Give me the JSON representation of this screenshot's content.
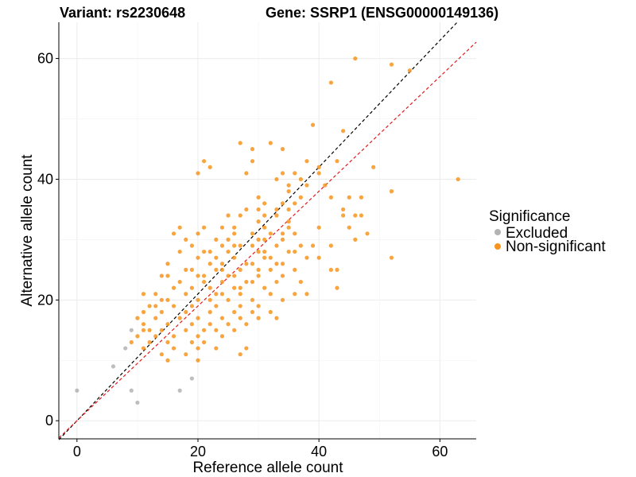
{
  "chart_data": {
    "type": "scatter",
    "title_left": "Variant: rs2230648",
    "title_right": "Gene: SSRP1 (ENSG00000149136)",
    "xlabel": "Reference allele count",
    "ylabel": "Alternative allele count",
    "xlim": [
      -3,
      66
    ],
    "ylim": [
      -3,
      66
    ],
    "x_ticks": [
      0,
      20,
      40,
      60
    ],
    "y_ticks": [
      0,
      20,
      40,
      60
    ],
    "grid": true,
    "legend": {
      "title": "Significance",
      "position": "right",
      "entries": [
        {
          "label": "Excluded",
          "color": "#b3b3b3"
        },
        {
          "label": "Non-significant",
          "color": "#f7941d"
        }
      ]
    },
    "reference_lines": [
      {
        "style": "dashed",
        "color": "#000000",
        "slope": 1.05,
        "intercept": 0
      },
      {
        "style": "dashed",
        "color": "#e41a1c",
        "slope": 0.95,
        "intercept": 0
      }
    ],
    "series": [
      {
        "name": "Excluded",
        "color": "#b3b3b3",
        "points": [
          [
            0,
            5
          ],
          [
            6,
            9
          ],
          [
            8,
            12
          ],
          [
            9,
            15
          ],
          [
            9,
            5
          ],
          [
            10,
            3
          ],
          [
            17,
            5
          ],
          [
            19,
            7
          ]
        ]
      },
      {
        "name": "Non-significant",
        "color": "#f7941d",
        "points": [
          [
            46,
            60
          ],
          [
            52,
            59
          ],
          [
            55,
            58
          ],
          [
            42,
            56
          ],
          [
            39,
            49
          ],
          [
            44,
            48
          ],
          [
            27,
            46
          ],
          [
            29,
            45
          ],
          [
            32,
            46
          ],
          [
            34,
            45
          ],
          [
            21,
            43
          ],
          [
            22,
            42
          ],
          [
            29,
            43
          ],
          [
            38,
            43
          ],
          [
            40,
            42
          ],
          [
            43,
            43
          ],
          [
            49,
            42
          ],
          [
            20,
            41
          ],
          [
            28,
            41
          ],
          [
            34,
            41
          ],
          [
            36,
            41
          ],
          [
            40,
            41
          ],
          [
            63,
            40
          ],
          [
            33,
            40
          ],
          [
            37,
            40
          ],
          [
            35,
            39
          ],
          [
            38,
            39
          ],
          [
            41,
            39
          ],
          [
            35,
            38
          ],
          [
            52,
            38
          ],
          [
            30,
            37
          ],
          [
            37,
            37
          ],
          [
            42,
            37
          ],
          [
            45,
            37
          ],
          [
            47,
            37
          ],
          [
            31,
            36
          ],
          [
            34,
            36
          ],
          [
            36,
            36
          ],
          [
            44,
            35
          ],
          [
            28,
            35
          ],
          [
            30,
            35
          ],
          [
            33,
            35
          ],
          [
            35,
            35
          ],
          [
            44,
            34
          ],
          [
            46,
            34
          ],
          [
            47,
            34
          ],
          [
            25,
            34
          ],
          [
            27,
            34
          ],
          [
            31,
            34
          ],
          [
            33,
            34
          ],
          [
            17,
            32
          ],
          [
            21,
            32
          ],
          [
            24,
            32
          ],
          [
            26,
            32
          ],
          [
            31,
            32
          ],
          [
            35,
            32
          ],
          [
            40,
            32
          ],
          [
            45,
            32
          ],
          [
            16,
            31
          ],
          [
            20,
            31
          ],
          [
            26,
            31
          ],
          [
            29,
            31
          ],
          [
            32,
            31
          ],
          [
            36,
            31
          ],
          [
            48,
            31
          ],
          [
            18,
            30
          ],
          [
            23,
            30
          ],
          [
            30,
            30
          ],
          [
            34,
            30
          ],
          [
            39,
            29
          ],
          [
            42,
            29
          ],
          [
            46,
            30
          ],
          [
            19,
            29
          ],
          [
            24,
            29
          ],
          [
            27,
            29
          ],
          [
            33,
            29
          ],
          [
            37,
            29
          ],
          [
            17,
            28
          ],
          [
            21,
            28
          ],
          [
            25,
            28
          ],
          [
            30,
            28
          ],
          [
            35,
            28
          ],
          [
            20,
            27
          ],
          [
            26,
            27
          ],
          [
            31,
            27
          ],
          [
            38,
            27
          ],
          [
            40,
            27
          ],
          [
            52,
            27
          ],
          [
            15,
            26
          ],
          [
            22,
            26
          ],
          [
            24,
            26
          ],
          [
            29,
            26
          ],
          [
            34,
            26
          ],
          [
            18,
            25
          ],
          [
            23,
            25
          ],
          [
            27,
            25
          ],
          [
            32,
            25
          ],
          [
            36,
            25
          ],
          [
            42,
            25
          ],
          [
            43,
            25
          ],
          [
            20,
            24
          ],
          [
            25,
            24
          ],
          [
            30,
            24
          ],
          [
            34,
            24
          ],
          [
            14,
            24
          ],
          [
            15,
            24
          ],
          [
            21,
            23
          ],
          [
            24,
            23
          ],
          [
            28,
            23
          ],
          [
            33,
            23
          ],
          [
            37,
            23
          ],
          [
            16,
            22
          ],
          [
            19,
            22
          ],
          [
            22,
            22
          ],
          [
            26,
            22
          ],
          [
            31,
            22
          ],
          [
            43,
            22
          ],
          [
            13,
            21
          ],
          [
            18,
            21
          ],
          [
            23,
            21
          ],
          [
            27,
            21
          ],
          [
            32,
            21
          ],
          [
            36,
            21
          ],
          [
            11,
            21
          ],
          [
            15,
            20
          ],
          [
            20,
            20
          ],
          [
            25,
            20
          ],
          [
            29,
            20
          ],
          [
            34,
            20
          ],
          [
            38,
            21
          ],
          [
            12,
            19
          ],
          [
            16,
            19
          ],
          [
            19,
            19
          ],
          [
            23,
            19
          ],
          [
            27,
            19
          ],
          [
            30,
            19
          ],
          [
            11,
            18
          ],
          [
            14,
            18
          ],
          [
            18,
            18
          ],
          [
            22,
            18
          ],
          [
            26,
            18
          ],
          [
            29,
            18
          ],
          [
            32,
            18
          ],
          [
            10,
            17
          ],
          [
            13,
            17
          ],
          [
            17,
            17
          ],
          [
            20,
            17
          ],
          [
            24,
            17
          ],
          [
            27,
            17
          ],
          [
            30,
            17
          ],
          [
            33,
            17
          ],
          [
            11,
            16
          ],
          [
            15,
            16
          ],
          [
            19,
            16
          ],
          [
            22,
            16
          ],
          [
            25,
            16
          ],
          [
            28,
            16
          ],
          [
            12,
            15
          ],
          [
            14,
            15
          ],
          [
            18,
            15
          ],
          [
            21,
            15
          ],
          [
            23,
            15
          ],
          [
            26,
            15
          ],
          [
            13,
            14
          ],
          [
            16,
            14
          ],
          [
            20,
            14
          ],
          [
            24,
            14
          ],
          [
            12,
            13
          ],
          [
            15,
            13
          ],
          [
            19,
            13
          ],
          [
            21,
            13
          ],
          [
            23,
            12
          ],
          [
            28,
            12
          ],
          [
            14,
            11
          ],
          [
            18,
            11
          ],
          [
            11,
            12
          ],
          [
            16,
            12
          ],
          [
            20,
            12
          ],
          [
            15,
            10
          ],
          [
            20,
            10
          ],
          [
            27,
            11
          ],
          [
            11,
            15
          ],
          [
            24,
            21
          ],
          [
            29,
            23
          ],
          [
            31,
            30
          ],
          [
            35,
            33
          ],
          [
            28,
            26
          ],
          [
            26,
            24
          ],
          [
            22,
            20
          ],
          [
            21,
            24
          ],
          [
            30,
            33
          ],
          [
            32,
            27
          ],
          [
            34,
            31
          ],
          [
            36,
            28
          ],
          [
            23,
            27
          ],
          [
            25,
            30
          ],
          [
            19,
            25
          ],
          [
            17,
            23
          ],
          [
            14,
            20
          ],
          [
            13,
            19
          ],
          [
            10,
            14
          ],
          [
            9,
            13
          ],
          [
            30,
            25
          ],
          [
            33,
            26
          ],
          [
            27,
            22
          ],
          [
            29,
            29
          ],
          [
            31,
            28
          ],
          [
            24,
            25
          ],
          [
            22,
            28
          ],
          [
            26,
            29
          ]
        ]
      }
    ]
  }
}
